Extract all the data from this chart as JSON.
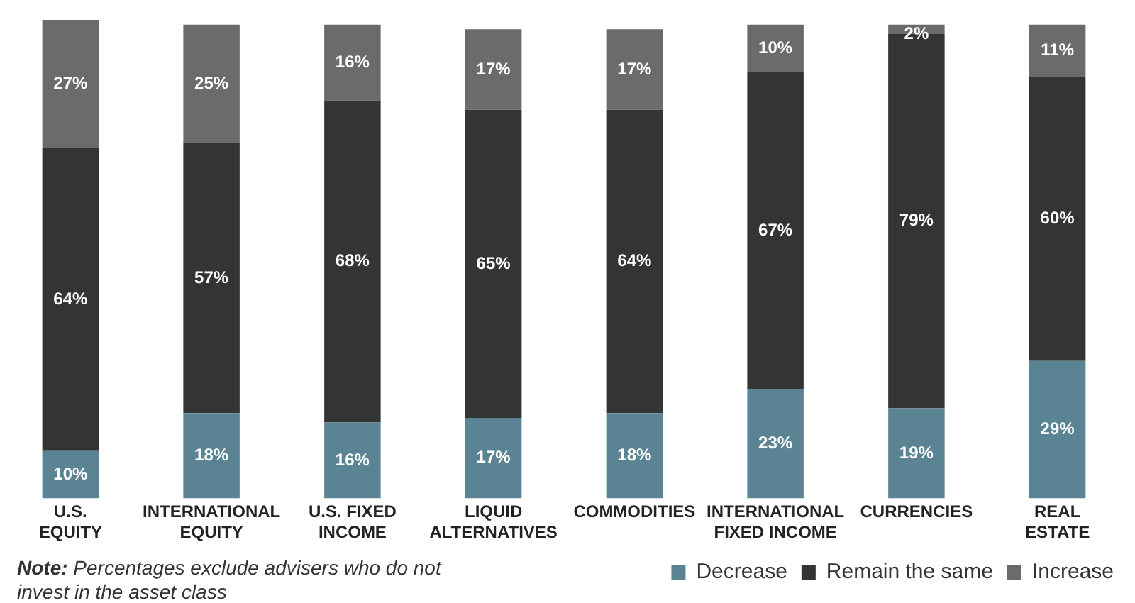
{
  "chart_data": {
    "type": "bar",
    "stacked": true,
    "grid": false,
    "legend": "bottom right",
    "categories": [
      "U.S.\nEQUITY",
      "INTERNATIONAL\nEQUITY",
      "U.S. FIXED\nINCOME",
      "LIQUID\nALTERNATIVES",
      "COMMODITIES",
      "INTERNATIONAL\nFIXED INCOME",
      "CURRENCIES",
      "REAL\nESTATE"
    ],
    "series": [
      {
        "name": "Decrease",
        "color": "#5a8494",
        "values": [
          10,
          18,
          16,
          17,
          18,
          23,
          19,
          29
        ],
        "value_labels": [
          "10%",
          "18%",
          "16%",
          "17%",
          "18%",
          "23%",
          "19%",
          "29%"
        ]
      },
      {
        "name": "Remain the same",
        "color": "#333434",
        "values": [
          64,
          57,
          68,
          65,
          64,
          67,
          79,
          60
        ],
        "value_labels": [
          "64%",
          "57%",
          "68%",
          "65%",
          "64%",
          "67%",
          "79%",
          "60%"
        ]
      },
      {
        "name": "Increase",
        "color": "#6d6b6a",
        "values": [
          27,
          25,
          16,
          17,
          17,
          10,
          2,
          11
        ],
        "value_labels": [
          "27%",
          "25%",
          "16%",
          "17%",
          "17%",
          "10%",
          "2%",
          "11%"
        ]
      }
    ],
    "annotations": [
      "Note: Percentages exclude advisers who do not invest in the asset class"
    ]
  }
}
